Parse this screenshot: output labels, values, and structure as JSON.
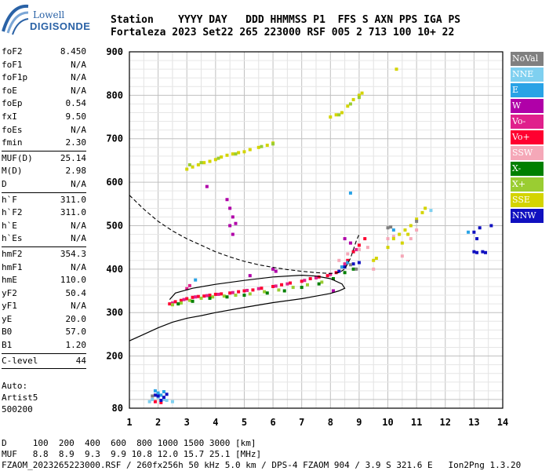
{
  "logo": {
    "line1": "Lowell",
    "line2": "DIGISONDE"
  },
  "header": {
    "line1": "Station    YYYY DAY   DDD HHMMSS P1  FFS S AXN PPS IGA PS",
    "line2": "Fortaleza 2023 Set22 265 223000 RSF 005 2 713 100 10+ 22"
  },
  "params_group1": [
    {
      "label": "foF2",
      "value": "8.450"
    },
    {
      "label": "foF1",
      "value": "N/A"
    },
    {
      "label": "foF1p",
      "value": "N/A"
    },
    {
      "label": "foE",
      "value": "N/A"
    },
    {
      "label": "foEp",
      "value": "0.54"
    },
    {
      "label": "fxI",
      "value": "9.50"
    },
    {
      "label": "foEs",
      "value": "N/A"
    },
    {
      "label": "fmin",
      "value": "2.30"
    }
  ],
  "params_group2": [
    {
      "label": "MUF(D)",
      "value": "25.14"
    },
    {
      "label": "M(D)",
      "value": "2.98"
    },
    {
      "label": "D",
      "value": "N/A"
    }
  ],
  "params_group3": [
    {
      "label": "h`F",
      "value": "311.0"
    },
    {
      "label": "h`F2",
      "value": "311.0"
    },
    {
      "label": "h`E",
      "value": "N/A"
    },
    {
      "label": "h`Es",
      "value": "N/A"
    }
  ],
  "params_group4": [
    {
      "label": "hmF2",
      "value": "354.3"
    },
    {
      "label": "hmF1",
      "value": "N/A"
    },
    {
      "label": "hmE",
      "value": "110.0"
    },
    {
      "label": "yF2",
      "value": "50.4"
    },
    {
      "label": "yF1",
      "value": "N/A"
    },
    {
      "label": "yE",
      "value": "20.0"
    },
    {
      "label": "B0",
      "value": "57.0"
    },
    {
      "label": "B1",
      "value": "1.20"
    }
  ],
  "params_group5": [
    {
      "label": "C-level",
      "value": "44"
    }
  ],
  "auto": {
    "line1": "Auto:",
    "line2": "Artist5",
    "line3": "500200"
  },
  "legend": [
    {
      "label": "NoVal",
      "color": "#808080"
    },
    {
      "label": "NNE",
      "color": "#7fd0f0"
    },
    {
      "label": "E",
      "color": "#29a3e6"
    },
    {
      "label": "W",
      "color": "#b000a8"
    },
    {
      "label": "Vo-",
      "color": "#e0208c"
    },
    {
      "label": "Vo+",
      "color": "#ff0030"
    },
    {
      "label": "SSW",
      "color": "#f5a8b8"
    },
    {
      "label": "X-",
      "color": "#008000"
    },
    {
      "label": "X+",
      "color": "#9acd32"
    },
    {
      "label": "SSE",
      "color": "#d4d400"
    },
    {
      "label": "NNW",
      "color": "#1010c0"
    }
  ],
  "bottom": {
    "line1": "D     100  200  400  600  800 1000 1500 3000 [km]",
    "line2": "MUF   8.8  8.9  9.3  9.9 10.8 12.0 15.7 25.1 [MHz]",
    "line3": "FZAOM_2023265223000.RSF / 260fx256h 50 kHz 5.0 km / DPS-4 FZAOM 904 / 3.9 S 321.6 E   Ion2Png 1.3.20"
  },
  "chart_data": {
    "type": "scatter",
    "xlim": [
      1,
      14
    ],
    "ylim": [
      80,
      900
    ],
    "xticks": [
      1,
      2,
      3,
      4,
      5,
      6,
      7,
      8,
      9,
      10,
      11,
      12,
      13,
      14
    ],
    "yticks": [
      80,
      200,
      300,
      400,
      500,
      600,
      700,
      800,
      900
    ],
    "grid": true,
    "legend_placement": "right",
    "series": [
      {
        "name": "Vo+",
        "color": "#ff0030",
        "points": [
          [
            2.4,
            320
          ],
          [
            2.6,
            325
          ],
          [
            2.8,
            328
          ],
          [
            3.0,
            332
          ],
          [
            3.2,
            335
          ],
          [
            3.4,
            337
          ],
          [
            3.6,
            338
          ],
          [
            3.8,
            340
          ],
          [
            4.0,
            342
          ],
          [
            4.2,
            343
          ],
          [
            4.5,
            345
          ],
          [
            4.8,
            348
          ],
          [
            5.0,
            350
          ],
          [
            5.3,
            352
          ],
          [
            5.6,
            356
          ],
          [
            6.0,
            360
          ],
          [
            6.3,
            364
          ],
          [
            6.6,
            368
          ],
          [
            7.0,
            372
          ],
          [
            7.3,
            378
          ],
          [
            7.6,
            382
          ],
          [
            7.9,
            385
          ],
          [
            8.2,
            392
          ],
          [
            8.4,
            405
          ],
          [
            8.6,
            420
          ],
          [
            8.8,
            440
          ],
          [
            9.0,
            455
          ],
          [
            9.2,
            470
          ],
          [
            1.9,
            95
          ],
          [
            2.1,
            93
          ]
        ]
      },
      {
        "name": "Vo-",
        "color": "#e0208c",
        "points": [
          [
            2.5,
            322
          ],
          [
            2.9,
            330
          ],
          [
            3.3,
            336
          ],
          [
            3.7,
            339
          ],
          [
            4.1,
            342
          ],
          [
            4.6,
            346
          ],
          [
            5.1,
            351
          ],
          [
            5.5,
            355
          ],
          [
            6.1,
            361
          ],
          [
            6.5,
            366
          ],
          [
            7.1,
            374
          ],
          [
            7.5,
            380
          ],
          [
            8.0,
            388
          ],
          [
            8.5,
            412
          ],
          [
            8.9,
            445
          ],
          [
            3.1,
            362
          ],
          [
            3.0,
            355
          ]
        ]
      },
      {
        "name": "SSW",
        "color": "#f5a8b8",
        "points": [
          [
            8.3,
            420
          ],
          [
            8.6,
            435
          ],
          [
            9.0,
            445
          ],
          [
            9.3,
            450
          ],
          [
            10.0,
            470
          ],
          [
            10.2,
            475
          ],
          [
            10.5,
            430
          ],
          [
            10.8,
            470
          ],
          [
            11.0,
            490
          ],
          [
            9.5,
            400
          ]
        ]
      },
      {
        "name": "W",
        "color": "#b000a8",
        "points": [
          [
            4.4,
            560
          ],
          [
            4.5,
            540
          ],
          [
            4.6,
            520
          ],
          [
            4.5,
            500
          ],
          [
            4.6,
            480
          ],
          [
            4.7,
            505
          ],
          [
            3.7,
            590
          ],
          [
            6.1,
            395
          ],
          [
            6.0,
            400
          ],
          [
            5.2,
            385
          ],
          [
            8.1,
            350
          ],
          [
            8.5,
            470
          ],
          [
            8.7,
            460
          ]
        ]
      },
      {
        "name": "SSE",
        "color": "#d4d400",
        "points": [
          [
            3.0,
            630
          ],
          [
            3.2,
            635
          ],
          [
            3.4,
            640
          ],
          [
            3.6,
            645
          ],
          [
            3.8,
            648
          ],
          [
            4.0,
            652
          ],
          [
            4.2,
            658
          ],
          [
            4.4,
            662
          ],
          [
            4.6,
            665
          ],
          [
            4.8,
            668
          ],
          [
            5.0,
            670
          ],
          [
            5.2,
            675
          ],
          [
            5.5,
            680
          ],
          [
            5.8,
            685
          ],
          [
            6.0,
            690
          ],
          [
            8.0,
            750
          ],
          [
            8.2,
            755
          ],
          [
            8.4,
            760
          ],
          [
            8.6,
            775
          ],
          [
            8.8,
            790
          ],
          [
            9.0,
            800
          ],
          [
            9.1,
            805
          ],
          [
            10.3,
            860
          ],
          [
            9.5,
            420
          ],
          [
            9.6,
            425
          ],
          [
            10.0,
            450
          ],
          [
            10.2,
            470
          ],
          [
            10.4,
            480
          ],
          [
            10.6,
            490
          ],
          [
            10.8,
            500
          ],
          [
            11.0,
            515
          ],
          [
            11.2,
            530
          ],
          [
            11.3,
            540
          ],
          [
            10.5,
            460
          ],
          [
            10.7,
            480
          ]
        ]
      },
      {
        "name": "X+",
        "color": "#9acd32",
        "points": [
          [
            2.5,
            318
          ],
          [
            2.8,
            322
          ],
          [
            3.1,
            328
          ],
          [
            3.5,
            333
          ],
          [
            3.9,
            336
          ],
          [
            4.3,
            338
          ],
          [
            4.7,
            340
          ],
          [
            5.2,
            343
          ],
          [
            5.7,
            348
          ],
          [
            6.2,
            352
          ],
          [
            6.7,
            358
          ],
          [
            7.2,
            364
          ],
          [
            7.7,
            370
          ],
          [
            3.1,
            640
          ],
          [
            3.5,
            645
          ],
          [
            4.1,
            655
          ],
          [
            4.7,
            665
          ],
          [
            5.6,
            682
          ],
          [
            6.0,
            688
          ],
          [
            8.3,
            755
          ],
          [
            8.7,
            780
          ],
          [
            9.0,
            795
          ]
        ]
      },
      {
        "name": "X-",
        "color": "#008000",
        "points": [
          [
            2.7,
            320
          ],
          [
            3.2,
            326
          ],
          [
            3.8,
            333
          ],
          [
            4.4,
            336
          ],
          [
            5.0,
            340
          ],
          [
            5.8,
            345
          ],
          [
            6.4,
            350
          ],
          [
            7.0,
            358
          ],
          [
            7.6,
            366
          ],
          [
            8.1,
            378
          ],
          [
            8.5,
            392
          ],
          [
            8.8,
            400
          ]
        ]
      },
      {
        "name": "E",
        "color": "#29a3e6",
        "points": [
          [
            1.9,
            120
          ],
          [
            2.0,
            115
          ],
          [
            2.1,
            110
          ],
          [
            2.2,
            118
          ],
          [
            8.7,
            575
          ],
          [
            10.2,
            490
          ],
          [
            12.8,
            485
          ],
          [
            8.4,
            405
          ],
          [
            8.6,
            415
          ],
          [
            3.3,
            375
          ]
        ]
      },
      {
        "name": "NNE",
        "color": "#7fd0f0",
        "points": [
          [
            1.7,
            95
          ],
          [
            1.8,
            100
          ],
          [
            2.0,
            105
          ],
          [
            2.2,
            100
          ],
          [
            2.3,
            98
          ],
          [
            2.5,
            95
          ],
          [
            11.5,
            535
          ]
        ]
      },
      {
        "name": "NNW",
        "color": "#1010c0",
        "points": [
          [
            13.0,
            440
          ],
          [
            13.1,
            438
          ],
          [
            13.3,
            440
          ],
          [
            13.4,
            438
          ],
          [
            13.1,
            470
          ],
          [
            13.0,
            485
          ],
          [
            13.2,
            495
          ],
          [
            13.6,
            500
          ],
          [
            8.3,
            395
          ],
          [
            8.5,
            405
          ],
          [
            8.8,
            412
          ],
          [
            9.0,
            415
          ],
          [
            1.9,
            110
          ],
          [
            2.0,
            108
          ],
          [
            2.3,
            112
          ],
          [
            2.2,
            105
          ],
          [
            2.1,
            98
          ]
        ]
      },
      {
        "name": "NoVal",
        "color": "#808080",
        "points": [
          [
            10.0,
            495
          ],
          [
            10.1,
            497
          ],
          [
            11.0,
            510
          ],
          [
            8.7,
            410
          ],
          [
            8.9,
            400
          ],
          [
            1.8,
            108
          ]
        ]
      }
    ],
    "profile_solid": [
      [
        1.0,
        235
      ],
      [
        1.5,
        250
      ],
      [
        2.0,
        265
      ],
      [
        2.5,
        278
      ],
      [
        3.0,
        287
      ],
      [
        3.5,
        293
      ],
      [
        4.0,
        300
      ],
      [
        5.0,
        312
      ],
      [
        6.0,
        323
      ],
      [
        7.0,
        332
      ],
      [
        7.5,
        338
      ],
      [
        8.0,
        344
      ],
      [
        8.3,
        350
      ],
      [
        8.5,
        356
      ],
      [
        8.4,
        366
      ],
      [
        8.0,
        378
      ],
      [
        7.5,
        384
      ],
      [
        7.0,
        386
      ],
      [
        6.0,
        382
      ],
      [
        5.0,
        374
      ],
      [
        4.0,
        365
      ],
      [
        3.2,
        356
      ],
      [
        2.6,
        345
      ],
      [
        2.4,
        330
      ]
    ],
    "profile_dashed": [
      [
        1.0,
        570
      ],
      [
        1.5,
        538
      ],
      [
        2.0,
        510
      ],
      [
        2.5,
        488
      ],
      [
        3.0,
        470
      ],
      [
        3.5,
        455
      ],
      [
        4.0,
        440
      ],
      [
        4.5,
        428
      ],
      [
        5.0,
        418
      ],
      [
        5.5,
        410
      ],
      [
        6.0,
        404
      ],
      [
        6.5,
        399
      ],
      [
        7.0,
        395
      ],
      [
        7.5,
        392
      ],
      [
        8.0,
        390
      ],
      [
        8.3,
        392
      ],
      [
        8.5,
        400
      ],
      [
        8.7,
        425
      ],
      [
        8.9,
        465
      ],
      [
        9.0,
        480
      ]
    ]
  }
}
